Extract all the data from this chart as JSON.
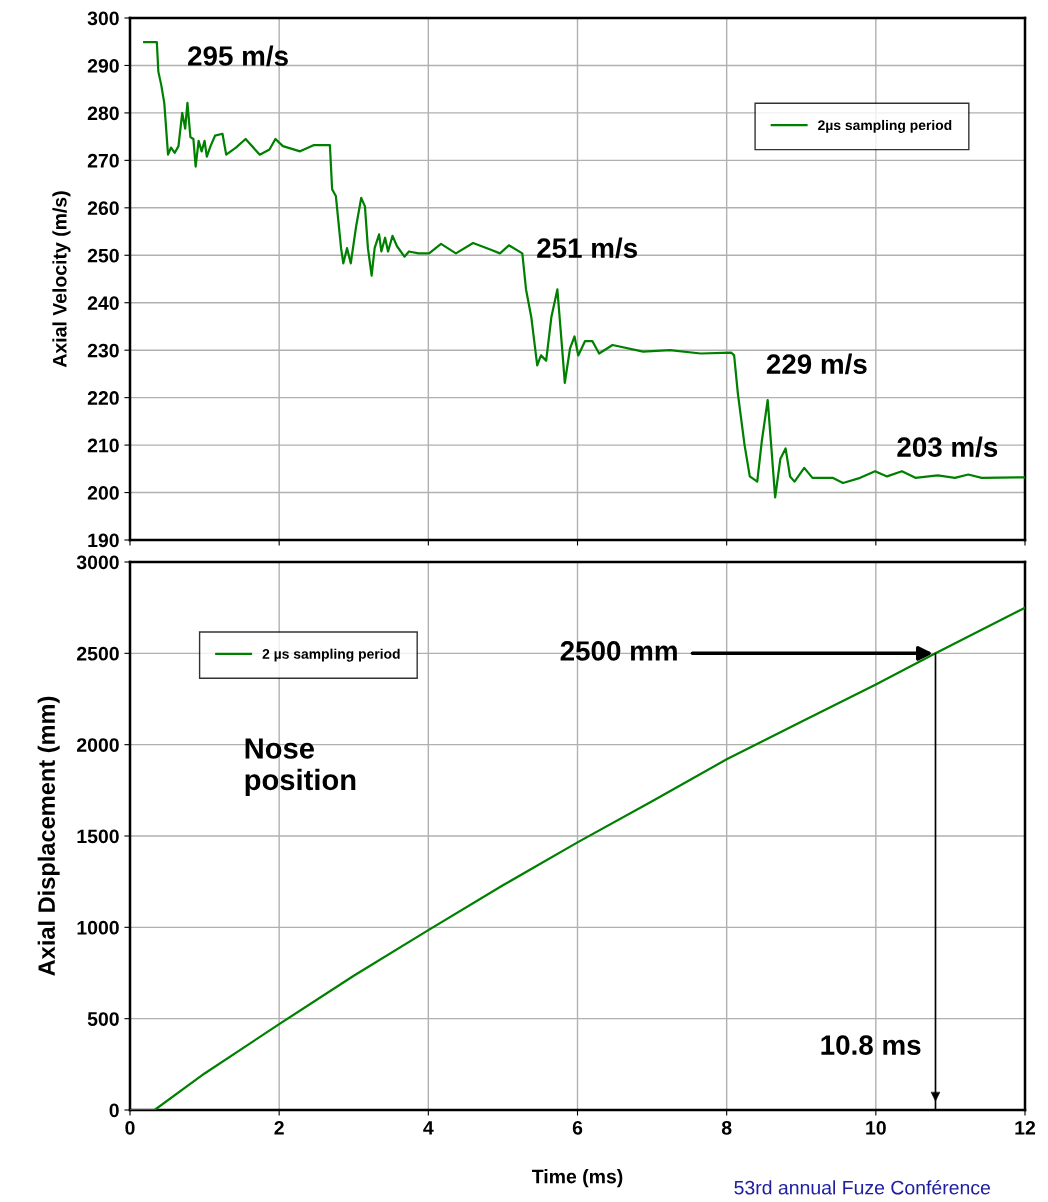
{
  "chart_data": [
    {
      "type": "line",
      "ylabel": "Axial Velocity (m/s)",
      "xlim": [
        0,
        12
      ],
      "xticks": [
        0,
        2,
        4,
        6,
        8,
        10,
        12
      ],
      "ylim": [
        190,
        300
      ],
      "yticks": [
        190,
        200,
        210,
        220,
        230,
        240,
        250,
        260,
        270,
        280,
        290,
        300
      ],
      "tick_labels": "y",
      "grid": true,
      "legend": "top right",
      "marker": "none",
      "line_style": "solid",
      "series": [
        {
          "name": "2µs sampling period",
          "color": "#008000",
          "x": [
            0.19,
            0.36,
            0.38,
            0.42,
            0.46,
            0.51,
            0.55,
            0.6,
            0.65,
            0.7,
            0.74,
            0.77,
            0.81,
            0.85,
            0.88,
            0.92,
            0.96,
            1.0,
            1.03,
            1.08,
            1.14,
            1.24,
            1.29,
            1.42,
            1.55,
            1.74,
            1.87,
            1.95,
            2.05,
            2.28,
            2.46,
            2.68,
            2.71,
            2.76,
            2.83,
            2.86,
            2.91,
            2.96,
            3.03,
            3.1,
            3.15,
            3.19,
            3.24,
            3.28,
            3.34,
            3.37,
            3.42,
            3.46,
            3.52,
            3.58,
            3.68,
            3.74,
            3.87,
            4.01,
            4.17,
            4.37,
            4.6,
            4.83,
            4.96,
            5.08,
            5.26,
            5.31,
            5.38,
            5.46,
            5.51,
            5.58,
            5.65,
            5.73,
            5.79,
            5.83,
            5.9,
            5.96,
            6.01,
            6.1,
            6.2,
            6.29,
            6.47,
            6.88,
            7.24,
            7.65,
            8.06,
            8.1,
            8.15,
            8.24,
            8.31,
            8.41,
            8.47,
            8.55,
            8.6,
            8.65,
            8.72,
            8.79,
            8.85,
            8.91,
            9.04,
            9.15,
            9.42,
            9.56,
            9.79,
            9.99,
            10.15,
            10.35,
            10.53,
            10.83,
            11.06,
            11.24,
            11.42,
            11.99
          ],
          "values": [
            294.9,
            294.9,
            288.7,
            285.8,
            282,
            271.2,
            272.7,
            271.6,
            273,
            280,
            276.7,
            282.1,
            274.9,
            274.5,
            268.7,
            274.1,
            271.9,
            274.1,
            270.8,
            273,
            275.2,
            275.6,
            271.2,
            272.7,
            274.5,
            271.2,
            272.3,
            274.5,
            273,
            271.9,
            273.2,
            273.2,
            263.9,
            262.5,
            251.5,
            248.3,
            251.5,
            248.3,
            255.9,
            262.1,
            260.3,
            251.5,
            245.7,
            251.5,
            254.4,
            250.8,
            253.7,
            250.8,
            254.1,
            251.9,
            249.7,
            250.8,
            250.4,
            250.4,
            252.4,
            250.4,
            252.6,
            251.2,
            250.4,
            252.1,
            250.4,
            242.8,
            237,
            226.8,
            228.9,
            227.8,
            237,
            242.8,
            231.1,
            223.1,
            230.4,
            232.9,
            228.9,
            231.9,
            231.9,
            229.3,
            231.1,
            229.7,
            230,
            229.3,
            229.5,
            228.9,
            220.9,
            210,
            203.4,
            202.3,
            210.7,
            219.5,
            209.3,
            199,
            207.1,
            209.3,
            203.4,
            202.3,
            205.2,
            203.1,
            203.1,
            202,
            203.1,
            204.5,
            203.4,
            204.5,
            203.1,
            203.6,
            203.1,
            203.8,
            203.1,
            203.2
          ]
        }
      ],
      "annotations": [
        {
          "text": "295 m/s",
          "x": 0.3,
          "y": 295
        },
        {
          "text": "251 m/s",
          "x": 5.26,
          "y": 251
        },
        {
          "text": "229 m/s",
          "x": 8.06,
          "y": 229.5
        },
        {
          "text": "203 m/s",
          "x": 10.35,
          "y": 204
        }
      ]
    },
    {
      "type": "line",
      "xlabel": "Time (ms)",
      "ylabel": "Axial Displacement (mm)",
      "xlim": [
        0,
        12
      ],
      "xticks": [
        0,
        2,
        4,
        6,
        8,
        10,
        12
      ],
      "ylim": [
        0,
        3000
      ],
      "yticks": [
        0,
        500,
        1000,
        1500,
        2000,
        2500,
        3000
      ],
      "grid": true,
      "legend": "top left",
      "marker": "none",
      "line_style": "solid",
      "series": [
        {
          "name": "2 µs sampling period",
          "color": "#008000",
          "x": [
            0,
            0.33,
            1,
            2,
            3,
            4,
            5,
            6,
            7,
            8,
            9,
            10,
            10.8,
            12
          ],
          "values": [
            0,
            0,
            200,
            470,
            735,
            985,
            1230,
            1465,
            1690,
            1920,
            2125,
            2330,
            2500,
            2750
          ]
        }
      ],
      "ref_lines": [
        {
          "axis": "x",
          "value": 10.8,
          "label": "10.8 ms",
          "color": "#000000"
        }
      ],
      "annotations": [
        {
          "text": "2500 mm",
          "x": 10.8,
          "y": 2500
        },
        "Nose position",
        "53rd annual Fuze Conférence"
      ]
    }
  ]
}
